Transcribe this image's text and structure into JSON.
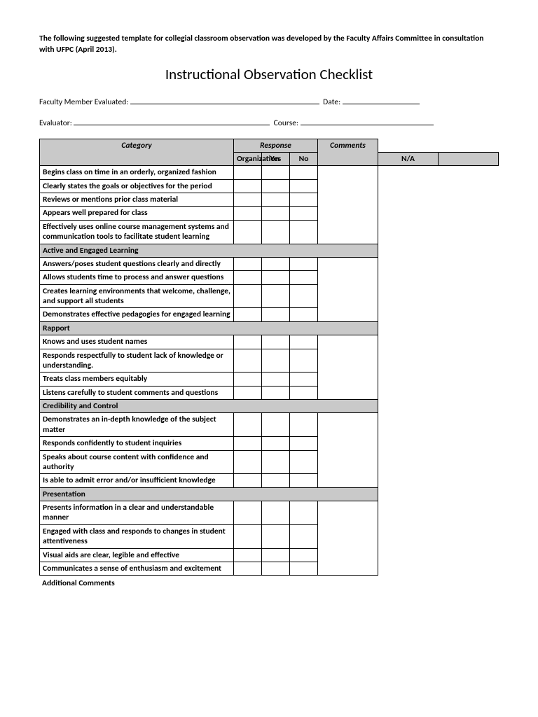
{
  "intro": "The following suggested template for collegial classroom observation was developed by the Faculty Affairs Committee in consultation with UFPC (April 2013).",
  "title": "Instructional Observation Checklist",
  "labels": {
    "faculty": "Faculty Member Evaluated:",
    "date": "Date:",
    "evaluator": "Evaluator:",
    "course": "Course:"
  },
  "headers": {
    "category": "Category",
    "response": "Response",
    "comments": "Comments",
    "yes": "Yes",
    "no": "No",
    "na": "N/A"
  },
  "sections": [
    {
      "name": "Organization",
      "items": [
        "Begins class on time in an orderly, organized fashion",
        "Clearly states the goals or objectives for the period",
        "Reviews or mentions prior class material",
        "Appears well prepared for class",
        "Effectively uses online course management systems and communication tools to facilitate student learning"
      ]
    },
    {
      "name": "Active and Engaged Learning",
      "items": [
        "Answers/poses student questions clearly and directly",
        "Allows students time to process and answer questions",
        "Creates learning environments that welcome, challenge, and support all students",
        "Demonstrates effective pedagogies for engaged learning"
      ]
    },
    {
      "name": "Rapport",
      "items": [
        "Knows and uses student names",
        "Responds respectfully to student lack of knowledge or understanding.",
        "Treats class members equitably",
        "Listens carefully to student comments and questions"
      ]
    },
    {
      "name": "Credibility and Control",
      "items": [
        "Demonstrates an in-depth knowledge of the subject matter",
        "Responds confidently to student inquiries",
        "Speaks about course content with confidence and authority",
        "Is able to admit error and/or insufficient knowledge"
      ]
    },
    {
      "name": "Presentation",
      "items": [
        "Presents information in a clear and understandable manner",
        "Engaged with class and responds to changes in student attentiveness",
        "Visual aids are clear, legible and effective",
        "Communicates a sense of enthusiasm and excitement"
      ]
    }
  ],
  "footer": "Additional Comments",
  "colors": {
    "section_bg": "#c9c9c9",
    "border": "#000000",
    "bg": "#ffffff"
  }
}
